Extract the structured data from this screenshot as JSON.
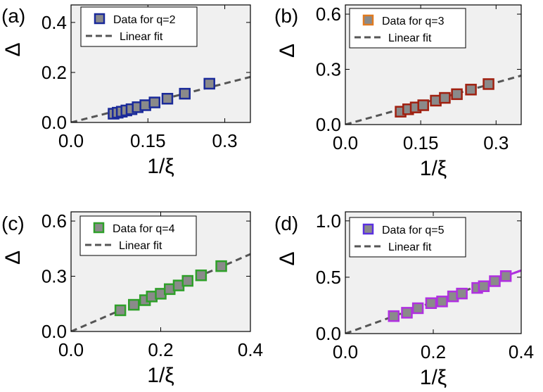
{
  "chart_data": [
    {
      "type": "scatter",
      "panel_label": "(a)",
      "xlabel": "1/ξ",
      "ylabel": "Δ",
      "xlim": [
        0.0,
        0.35
      ],
      "ylim": [
        0.0,
        0.47
      ],
      "xticks": [
        "0.0",
        "0.15",
        "0.3"
      ],
      "xtick_values": [
        0.0,
        0.15,
        0.3
      ],
      "yticks": [
        "0.0",
        "0.2",
        "0.4"
      ],
      "ytick_values": [
        0.0,
        0.2,
        0.4
      ],
      "legend": {
        "data_label": "Data for q=2",
        "fit_label": "Linear fit",
        "position": "top"
      },
      "marker_edge_color": "#1a2a9a",
      "marker_face_color": "#8a8a8a",
      "fit": {
        "slope": 0.52,
        "intercept": 0.0
      },
      "series": [
        {
          "name": "Data for q=2",
          "x": [
            0.083,
            0.091,
            0.099,
            0.108,
            0.118,
            0.13,
            0.145,
            0.163,
            0.188,
            0.222,
            0.27
          ],
          "y": [
            0.035,
            0.039,
            0.043,
            0.048,
            0.053,
            0.061,
            0.069,
            0.08,
            0.095,
            0.115,
            0.155
          ]
        }
      ]
    },
    {
      "type": "scatter",
      "panel_label": "(b)",
      "xlabel": "1/ξ",
      "ylabel": "Δ",
      "xlim": [
        0.0,
        0.35
      ],
      "ylim": [
        0.0,
        0.65
      ],
      "xticks": [
        "0.0",
        "0.15",
        "0.3"
      ],
      "xtick_values": [
        0.0,
        0.15,
        0.3
      ],
      "yticks": [
        "0.0",
        "0.3",
        "0.6"
      ],
      "ytick_values": [
        0.0,
        0.3,
        0.6
      ],
      "legend": {
        "data_label": "Data for q=3",
        "fit_label": "Linear fit",
        "position": "top"
      },
      "legend_marker_edge_color": "#e07a20",
      "marker_edge_color": "#a02010",
      "marker_face_color": "#8a8a8a",
      "fit": {
        "slope": 0.76,
        "intercept": 0.0
      },
      "series": [
        {
          "name": "Data for q=3",
          "x": [
            0.11,
            0.125,
            0.14,
            0.155,
            0.18,
            0.198,
            0.222,
            0.25,
            0.285
          ],
          "y": [
            0.07,
            0.083,
            0.093,
            0.105,
            0.13,
            0.145,
            0.165,
            0.19,
            0.22
          ]
        }
      ]
    },
    {
      "type": "scatter",
      "panel_label": "(c)",
      "xlabel": "1/ξ",
      "ylabel": "Δ",
      "xlim": [
        0.0,
        0.4
      ],
      "ylim": [
        0.0,
        0.65
      ],
      "xticks": [
        "0.0",
        "0.2",
        "0.4"
      ],
      "xtick_values": [
        0.0,
        0.2,
        0.4
      ],
      "yticks": [
        "0.0",
        "0.3",
        "0.6"
      ],
      "ytick_values": [
        0.0,
        0.3,
        0.6
      ],
      "legend": {
        "data_label": "Data for q=4",
        "fit_label": "Linear fit",
        "position": "top"
      },
      "marker_edge_color": "#2fa02a",
      "marker_face_color": "#8a8a8a",
      "fit": {
        "slope": 1.05,
        "intercept": 0.0
      },
      "series": [
        {
          "name": "Data for q=4",
          "x": [
            0.11,
            0.14,
            0.165,
            0.18,
            0.2,
            0.22,
            0.24,
            0.26,
            0.29,
            0.335
          ],
          "y": [
            0.115,
            0.145,
            0.17,
            0.19,
            0.205,
            0.23,
            0.25,
            0.275,
            0.305,
            0.355
          ]
        }
      ]
    },
    {
      "type": "scatter",
      "panel_label": "(d)",
      "xlabel": "1/ξ",
      "ylabel": "Δ",
      "xlim": [
        0.0,
        0.4
      ],
      "ylim": [
        0.0,
        1.08
      ],
      "xticks": [
        "0.0",
        "0.2",
        "0.4"
      ],
      "xtick_values": [
        0.0,
        0.2,
        0.4
      ],
      "yticks": [
        "0.0",
        "0.5",
        "1.0"
      ],
      "ytick_values": [
        0.0,
        0.5,
        1.0
      ],
      "legend": {
        "data_label": "Data for q=5",
        "fit_label": "Linear fit",
        "position": "top"
      },
      "legend_marker_edge_color": "#5a30e0",
      "marker_edge_color": "#b030e0",
      "marker_face_color": "#8a8a8a",
      "fit": {
        "slope": 1.4,
        "intercept": 0.0
      },
      "fit_tail_color": "#b030e0",
      "series": [
        {
          "name": "Data for q=5",
          "x": [
            0.11,
            0.14,
            0.165,
            0.195,
            0.22,
            0.245,
            0.265,
            0.3,
            0.315,
            0.34,
            0.365
          ],
          "y": [
            0.155,
            0.185,
            0.225,
            0.27,
            0.285,
            0.33,
            0.355,
            0.405,
            0.42,
            0.465,
            0.51
          ]
        }
      ]
    }
  ]
}
